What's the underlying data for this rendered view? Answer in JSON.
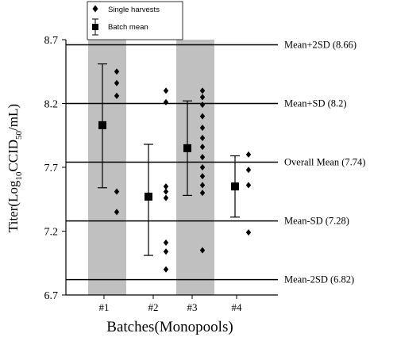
{
  "chart_data": {
    "type": "scatter",
    "xlabel": "Batches",
    "xlabel_suffix": "(Monopools)",
    "ylabel_prefix": "Titer",
    "ylabel_log": "(Log",
    "ylabel_sub10": "10",
    "ylabel_ccid": "CCID",
    "ylabel_sub50": "50",
    "ylabel_unit": "/mL)",
    "ylim": [
      6.7,
      8.7
    ],
    "yticks": [
      "6.7",
      "7.2",
      "7.7",
      "8.2",
      "8.7"
    ],
    "ytick_values": [
      6.7,
      7.2,
      7.7,
      8.2,
      8.7
    ],
    "categories": [
      "#1",
      "#2",
      "#3",
      "#4"
    ],
    "shaded_batches": [
      0,
      2
    ],
    "legend": {
      "position": "top-left",
      "single_label": "Single harvests",
      "mean_label": "Batch mean"
    },
    "reference_lines": [
      {
        "label": "Mean+2SD",
        "value_text": "(8.66)",
        "value": 8.66
      },
      {
        "label": "Mean+SD",
        "value_text": "(8.2)",
        "value": 8.2
      },
      {
        "label": "Overall Mean",
        "value_text": "(7.74)",
        "value": 7.74
      },
      {
        "label": "Mean-SD",
        "value_text": "(7.28)",
        "value": 7.28
      },
      {
        "label": "Mean-2SD",
        "value_text": "(6.82)",
        "value": 6.82
      }
    ],
    "batch_means": [
      {
        "batch": "#1",
        "mean": 8.03,
        "lower": 7.54,
        "upper": 8.51
      },
      {
        "batch": "#2",
        "mean": 7.47,
        "lower": 7.01,
        "upper": 7.88
      },
      {
        "batch": "#3",
        "mean": 7.85,
        "lower": 7.48,
        "upper": 8.22
      },
      {
        "batch": "#4",
        "mean": 7.55,
        "lower": 7.31,
        "upper": 7.79
      }
    ],
    "single_harvests": [
      {
        "batch": "#1",
        "values": [
          8.45,
          8.36,
          8.26,
          7.51,
          7.35
        ]
      },
      {
        "batch": "#2",
        "values": [
          8.3,
          8.21,
          7.55,
          7.51,
          7.46,
          7.11,
          7.04,
          6.9
        ]
      },
      {
        "batch": "#3",
        "values": [
          8.3,
          8.25,
          8.19,
          8.1,
          8.01,
          7.93,
          7.86,
          7.78,
          7.7,
          7.63,
          7.56,
          7.5,
          7.05
        ]
      },
      {
        "batch": "#4",
        "values": [
          7.8,
          7.68,
          7.56,
          7.19
        ]
      }
    ]
  }
}
